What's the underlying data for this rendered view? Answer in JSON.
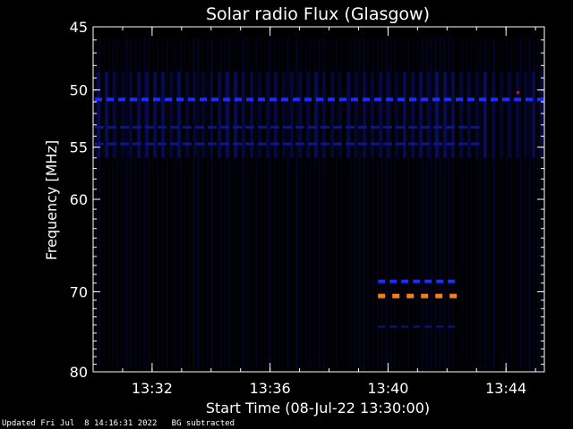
{
  "footer": {
    "updated": "Updated Fri Jul  8 14:16:31 2022",
    "note": "BG subtracted"
  },
  "colors": {
    "background": "#000000",
    "noise": "#05052a",
    "blue_band": "#1a2cff",
    "dark_band": "#0c1490",
    "orange_band": "#ff7a10",
    "red_spot": "#d01818",
    "axes": "#ffffff"
  },
  "chart_data": {
    "type": "heatmap",
    "title": "Solar radio Flux (Glasgow)",
    "xlabel": "Start Time (08-Jul-22 13:30:00)",
    "ylabel": "Frequency [MHz]",
    "x_unit": "minutes after 13:30:00",
    "xlim": [
      0,
      15.3
    ],
    "ylim": [
      45,
      80
    ],
    "y_scale": "log",
    "x_ticks": [
      {
        "value": 2,
        "label": "13:32"
      },
      {
        "value": 6,
        "label": "13:36"
      },
      {
        "value": 10,
        "label": "13:40"
      },
      {
        "value": 14,
        "label": "13:44"
      }
    ],
    "y_ticks": [
      {
        "value": 45,
        "label": "45"
      },
      {
        "value": 50,
        "label": "50"
      },
      {
        "value": 55,
        "label": "55"
      },
      {
        "value": 60,
        "label": "60"
      },
      {
        "value": 70,
        "label": "70"
      },
      {
        "value": 80,
        "label": "80"
      }
    ],
    "grid": false,
    "features": [
      {
        "kind": "band",
        "intensity": "high",
        "freq_mhz": 50.8,
        "t_start": 0,
        "t_end": 15.3
      },
      {
        "kind": "band",
        "intensity": "medium",
        "freq_mhz": 53.2,
        "t_start": 0,
        "t_end": 13.1
      },
      {
        "kind": "band",
        "intensity": "medium",
        "freq_mhz": 54.7,
        "t_start": 0,
        "t_end": 13.1
      },
      {
        "kind": "band",
        "intensity": "high",
        "freq_mhz": 68.8,
        "t_start": 9.6,
        "t_end": 12.4
      },
      {
        "kind": "band",
        "intensity": "very-high",
        "freq_mhz": 70.5,
        "t_start": 9.6,
        "t_end": 12.4
      },
      {
        "kind": "band",
        "intensity": "low",
        "freq_mhz": 74.2,
        "t_start": 9.6,
        "t_end": 12.4
      },
      {
        "kind": "spot",
        "intensity": "peak",
        "freq_mhz": 50.2,
        "t_start": 14.3,
        "t_end": 14.4
      }
    ]
  }
}
